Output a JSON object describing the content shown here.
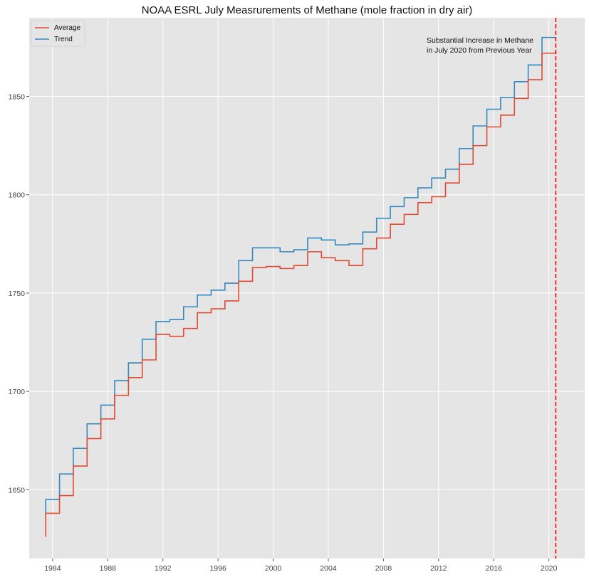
{
  "chart_data": {
    "type": "line",
    "title": "NOAA ESRL July Measrurements of Methane (mole fraction in dry air)",
    "xlabel": "",
    "ylabel": "",
    "xlim": [
      1982.3,
      2022.6
    ],
    "ylim": [
      1615,
      1890
    ],
    "x_ticks": [
      1984,
      1988,
      1992,
      1996,
      2000,
      2004,
      2008,
      2012,
      2016,
      2020
    ],
    "y_ticks": [
      1650,
      1700,
      1750,
      1800,
      1850
    ],
    "grid": true,
    "legend_position": "top-left",
    "x": [
      1983.5,
      1984.5,
      1985.5,
      1986.5,
      1987.5,
      1988.5,
      1989.5,
      1990.5,
      1991.5,
      1992.5,
      1993.5,
      1994.5,
      1995.5,
      1996.5,
      1997.5,
      1998.5,
      1999.5,
      2000.5,
      2001.5,
      2002.5,
      2003.5,
      2004.5,
      2005.5,
      2006.5,
      2007.5,
      2008.5,
      2009.5,
      2010.5,
      2011.5,
      2012.5,
      2013.5,
      2014.5,
      2015.5,
      2016.5,
      2017.5,
      2018.5,
      2019.5,
      2020.5
    ],
    "series": [
      {
        "name": "Average",
        "color": "#e24a33",
        "step": "post",
        "start": 1626,
        "values": [
          1638,
          1647,
          1662,
          1676,
          1686,
          1698,
          1707,
          1716,
          1729,
          1728,
          1732,
          1740,
          1742,
          1746,
          1756,
          1763,
          1763.5,
          1762.5,
          1764,
          1771,
          1768,
          1766.5,
          1764,
          1772.5,
          1778,
          1785,
          1790,
          1796,
          1799,
          1806,
          1815.5,
          1825,
          1834.5,
          1840.5,
          1849,
          1858.5,
          1872,
          1872
        ]
      },
      {
        "name": "Trend",
        "color": "#348abd",
        "step": "post",
        "start": 1635,
        "values": [
          1645,
          1658,
          1671,
          1683.5,
          1693,
          1705.5,
          1714.5,
          1726.5,
          1735.5,
          1736.5,
          1743,
          1749,
          1751.5,
          1755,
          1766.5,
          1773,
          1773,
          1771,
          1772,
          1778,
          1777,
          1774.5,
          1775,
          1781,
          1788,
          1794,
          1798.5,
          1803.5,
          1808.5,
          1813,
          1823.5,
          1835,
          1843.5,
          1849.5,
          1857.5,
          1866,
          1880,
          1880
        ]
      }
    ],
    "reference_line": {
      "x": 2020.5,
      "color": "#ff0000",
      "style": "dashed"
    },
    "annotation": {
      "lines": [
        "Substantial Increase in Methane",
        "in July 2020 from Previous Year"
      ],
      "x": 2010.8,
      "y": 1882
    }
  }
}
